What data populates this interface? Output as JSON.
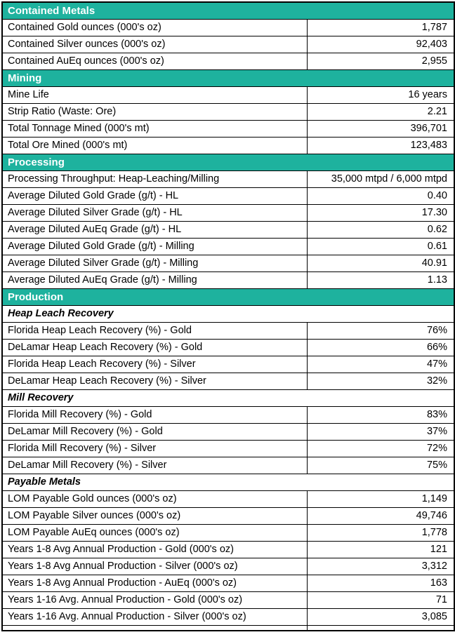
{
  "colors": {
    "section_header_bg": "#1EB29E",
    "section_header_text": "#ffffff",
    "border": "#000000",
    "row_bg": "#ffffff",
    "row_text": "#000000"
  },
  "table": {
    "sections": [
      {
        "title": "Contained Metals",
        "rows": [
          {
            "type": "data",
            "label": "Contained Gold ounces (000's oz)",
            "value": "1,787"
          },
          {
            "type": "data",
            "label": "Contained Silver ounces (000's oz)",
            "value": "92,403"
          },
          {
            "type": "data",
            "label": "Contained AuEq ounces (000's oz)",
            "value": "2,955"
          }
        ]
      },
      {
        "title": "Mining",
        "rows": [
          {
            "type": "data",
            "label": "Mine Life",
            "value": "16 years"
          },
          {
            "type": "data",
            "label": "Strip Ratio (Waste: Ore)",
            "value": "2.21"
          },
          {
            "type": "data",
            "label": "Total Tonnage Mined (000's mt)",
            "value": "396,701"
          },
          {
            "type": "data",
            "label": "Total Ore Mined (000's mt)",
            "value": "123,483"
          }
        ]
      },
      {
        "title": "Processing",
        "rows": [
          {
            "type": "data",
            "label": "Processing Throughput: Heap-Leaching/Milling",
            "value": "35,000 mtpd / 6,000 mtpd"
          },
          {
            "type": "data",
            "label": "Average Diluted Gold Grade (g/t) - HL",
            "value": "0.40"
          },
          {
            "type": "data",
            "label": "Average Diluted Silver Grade (g/t) - HL",
            "value": "17.30"
          },
          {
            "type": "data",
            "label": "Average Diluted AuEq Grade (g/t) - HL",
            "value": "0.62"
          },
          {
            "type": "data",
            "label": "Average Diluted Gold Grade (g/t) - Milling",
            "value": "0.61"
          },
          {
            "type": "data",
            "label": "Average Diluted Silver Grade (g/t) - Milling",
            "value": "40.91"
          },
          {
            "type": "data",
            "label": "Average Diluted AuEq Grade (g/t) - Milling",
            "value": "1.13"
          }
        ]
      },
      {
        "title": "Production",
        "rows": [
          {
            "type": "subheader",
            "label": "Heap Leach Recovery"
          },
          {
            "type": "data",
            "label": "Florida Heap Leach Recovery (%) - Gold",
            "value": "76%"
          },
          {
            "type": "data",
            "label": "DeLamar Heap Leach Recovery (%) - Gold",
            "value": "66%"
          },
          {
            "type": "data",
            "label": "Florida Heap Leach Recovery (%) - Silver",
            "value": "47%"
          },
          {
            "type": "data",
            "label": "DeLamar Heap Leach Recovery (%) - Silver",
            "value": "32%"
          },
          {
            "type": "subheader",
            "label": "Mill Recovery"
          },
          {
            "type": "data",
            "label": "Florida Mill Recovery (%) - Gold",
            "value": "83%"
          },
          {
            "type": "data",
            "label": "DeLamar Mill Recovery (%) - Gold",
            "value": "37%"
          },
          {
            "type": "data",
            "label": "Florida Mill Recovery (%) - Silver",
            "value": "72%"
          },
          {
            "type": "data",
            "label": "DeLamar Mill Recovery (%) - Silver",
            "value": "75%"
          },
          {
            "type": "subheader",
            "label": "Payable Metals"
          },
          {
            "type": "data",
            "label": "LOM Payable Gold ounces (000's oz)",
            "value": "1,149"
          },
          {
            "type": "data",
            "label": "LOM Payable Silver ounces (000's oz)",
            "value": "49,746"
          },
          {
            "type": "data",
            "label": "LOM Payable AuEq ounces (000's oz)",
            "value": "1,778"
          },
          {
            "type": "data",
            "label": "Years 1-8 Avg Annual Production - Gold (000's oz)",
            "value": "121"
          },
          {
            "type": "data",
            "label": "Years 1-8 Avg Annual Production - Silver (000's oz)",
            "value": "3,312"
          },
          {
            "type": "data",
            "label": "Years 1-8 Avg Annual Production - AuEq (000's oz)",
            "value": "163"
          },
          {
            "type": "data",
            "label": "Years 1-16 Avg. Annual Production - Gold (000's oz)",
            "value": "71"
          },
          {
            "type": "data",
            "label": "Years 1-16 Avg. Annual Production - Silver (000's oz)",
            "value": "3,085"
          }
        ]
      }
    ]
  }
}
